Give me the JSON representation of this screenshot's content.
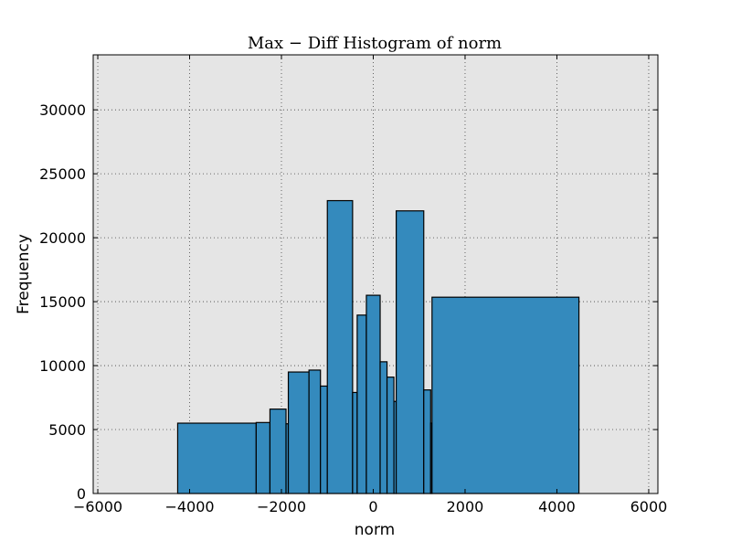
{
  "chart_data": {
    "type": "bar",
    "title": "Max − Diff Histogram of norm",
    "xlabel": "norm",
    "ylabel": "Frequency",
    "xlim": [
      -6100,
      6200
    ],
    "ylim": [
      0,
      34300
    ],
    "xticks": [
      -6000,
      -4000,
      -2000,
      0,
      2000,
      4000,
      6000
    ],
    "yticks": [
      0,
      5000,
      10000,
      15000,
      20000,
      25000,
      30000
    ],
    "grid": true,
    "bar_color": "#348abd",
    "edge_color": "#000000",
    "background_color": "#e5e5e5",
    "bars": [
      {
        "x0": -4260,
        "x1": -2550,
        "value": 5500
      },
      {
        "x0": -2550,
        "x1": -2250,
        "value": 5550
      },
      {
        "x0": -2250,
        "x1": -1900,
        "value": 6600
      },
      {
        "x0": -1900,
        "x1": -1850,
        "value": 5450
      },
      {
        "x0": -1850,
        "x1": -1400,
        "value": 9500
      },
      {
        "x0": -1400,
        "x1": -1150,
        "value": 9650
      },
      {
        "x0": -1150,
        "x1": -1000,
        "value": 8400
      },
      {
        "x0": -1000,
        "x1": -450,
        "value": 22900
      },
      {
        "x0": -450,
        "x1": -350,
        "value": 7900
      },
      {
        "x0": -350,
        "x1": -150,
        "value": 13950
      },
      {
        "x0": -150,
        "x1": 150,
        "value": 15500
      },
      {
        "x0": 150,
        "x1": 300,
        "value": 10300
      },
      {
        "x0": 300,
        "x1": 450,
        "value": 9100
      },
      {
        "x0": 450,
        "x1": 500,
        "value": 7200
      },
      {
        "x0": 500,
        "x1": 1100,
        "value": 22100
      },
      {
        "x0": 1100,
        "x1": 1250,
        "value": 8100
      },
      {
        "x0": 1250,
        "x1": 1280,
        "value": 5500
      },
      {
        "x0": 1280,
        "x1": 4480,
        "value": 15350
      }
    ]
  }
}
